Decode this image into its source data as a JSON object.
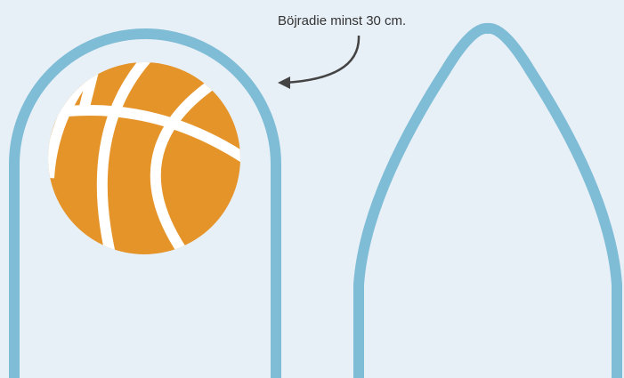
{
  "annotation": {
    "label": "Böjradie minst 30 cm."
  }
}
